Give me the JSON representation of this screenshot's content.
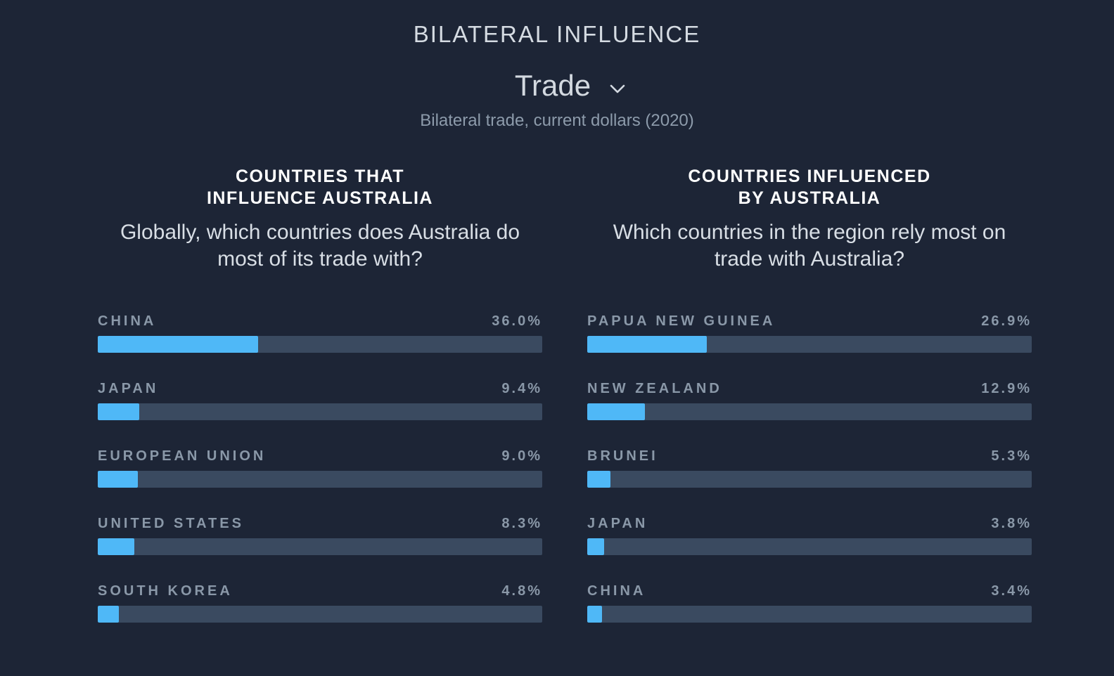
{
  "header": {
    "title": "BILATERAL INFLUENCE"
  },
  "selector": {
    "label": "Trade",
    "icon": "chevron-down-icon"
  },
  "subtitle": "Bilateral trade, current dollars (2020)",
  "colors": {
    "background": "#1d2536",
    "bar_fill": "#4fb8f7",
    "bar_track": "#3a4a60"
  },
  "chart_data": [
    {
      "type": "bar",
      "orientation": "horizontal",
      "title": "COUNTRIES THAT INFLUENCE AUSTRALIA",
      "subtitle": "Globally, which countries does Australia do most of its trade with?",
      "categories": [
        "CHINA",
        "JAPAN",
        "EUROPEAN UNION",
        "UNITED STATES",
        "SOUTH KOREA"
      ],
      "values": [
        36.0,
        9.4,
        9.0,
        8.3,
        4.8
      ],
      "value_labels": [
        "36.0%",
        "9.4%",
        "9.0%",
        "8.3%",
        "4.8%"
      ],
      "xlim": [
        0,
        100
      ]
    },
    {
      "type": "bar",
      "orientation": "horizontal",
      "title": "COUNTRIES INFLUENCED BY AUSTRALIA",
      "subtitle": "Which countries in the region rely most on trade with Australia?",
      "categories": [
        "PAPUA NEW GUINEA",
        "NEW ZEALAND",
        "BRUNEI",
        "JAPAN",
        "CHINA"
      ],
      "values": [
        26.9,
        12.9,
        5.3,
        3.8,
        3.4
      ],
      "value_labels": [
        "26.9%",
        "12.9%",
        "5.3%",
        "3.8%",
        "3.4%"
      ],
      "xlim": [
        0,
        100
      ]
    }
  ],
  "panels": {
    "left": {
      "heading_line1": "COUNTRIES THAT",
      "heading_line2": "INFLUENCE AUSTRALIA",
      "question": "Globally, which countries does Australia do most of its trade with?"
    },
    "right": {
      "heading_line1": "COUNTRIES INFLUENCED",
      "heading_line2": "BY AUSTRALIA",
      "question": "Which countries in the region rely most on trade with Australia?"
    }
  }
}
